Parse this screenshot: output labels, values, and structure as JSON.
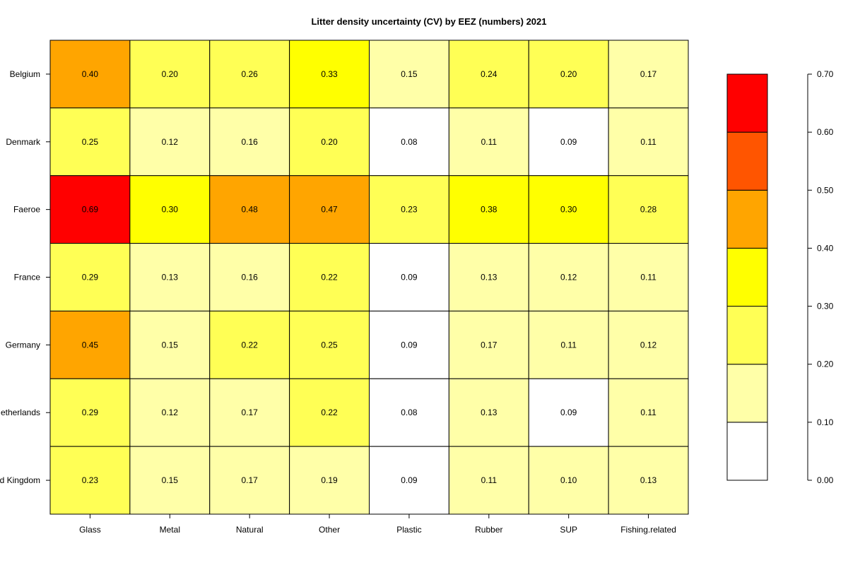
{
  "chart_data": {
    "type": "heatmap",
    "title": "Litter density uncertainty (CV) by EEZ (numbers) 2021",
    "xlabel": "",
    "ylabel": "",
    "columns": [
      "Glass",
      "Metal",
      "Natural",
      "Other",
      "Plastic",
      "Rubber",
      "SUP",
      "Fishing.related"
    ],
    "rows": [
      "Belgium",
      "Denmark",
      "Faeroe",
      "France",
      "Germany",
      "Netherlands",
      "United Kingdom"
    ],
    "row_labels_visible": [
      "Belgium",
      "Denmark",
      "Faeroe",
      "France",
      "Germany",
      "etherlands",
      "d Kingdom"
    ],
    "values": [
      [
        0.4,
        0.2,
        0.26,
        0.33,
        0.15,
        0.24,
        0.2,
        0.17
      ],
      [
        0.25,
        0.12,
        0.16,
        0.2,
        0.08,
        0.11,
        0.09,
        0.11
      ],
      [
        0.69,
        0.3,
        0.48,
        0.47,
        0.23,
        0.38,
        0.3,
        0.28
      ],
      [
        0.29,
        0.13,
        0.16,
        0.22,
        0.09,
        0.13,
        0.12,
        0.11
      ],
      [
        0.45,
        0.15,
        0.22,
        0.25,
        0.09,
        0.17,
        0.11,
        0.12
      ],
      [
        0.29,
        0.12,
        0.17,
        0.22,
        0.08,
        0.13,
        0.09,
        0.11
      ],
      [
        0.23,
        0.15,
        0.17,
        0.19,
        0.09,
        0.11,
        0.1,
        0.13
      ]
    ],
    "value_labels": [
      [
        "0.40",
        "0.20",
        "0.26",
        "0.33",
        "0.15",
        "0.24",
        "0.20",
        "0.17"
      ],
      [
        "0.25",
        "0.12",
        "0.16",
        "0.20",
        "0.08",
        "0.11",
        "0.09",
        "0.11"
      ],
      [
        "0.69",
        "0.30",
        "0.48",
        "0.47",
        "0.23",
        "0.38",
        "0.30",
        "0.28"
      ],
      [
        "0.29",
        "0.13",
        "0.16",
        "0.22",
        "0.09",
        "0.13",
        "0.12",
        "0.11"
      ],
      [
        "0.45",
        "0.15",
        "0.22",
        "0.25",
        "0.09",
        "0.17",
        "0.11",
        "0.12"
      ],
      [
        "0.29",
        "0.12",
        "0.17",
        "0.22",
        "0.08",
        "0.13",
        "0.09",
        "0.11"
      ],
      [
        "0.23",
        "0.15",
        "0.17",
        "0.19",
        "0.09",
        "0.11",
        "0.10",
        "0.13"
      ]
    ],
    "color_scale": {
      "breaks": [
        0.0,
        0.1,
        0.2,
        0.3,
        0.4,
        0.5,
        0.6,
        0.7
      ],
      "colors": [
        "#FFFFFF",
        "#FFFFA8",
        "#FFFF55",
        "#FFFF00",
        "#FFA500",
        "#FF5500",
        "#FF0000"
      ],
      "range": [
        0.0,
        0.7
      ],
      "tick_values": [
        0.0,
        0.1,
        0.2,
        0.3,
        0.4,
        0.5,
        0.6,
        0.7
      ],
      "tick_labels": [
        "0.00",
        "0.10",
        "0.20",
        "0.30",
        "0.40",
        "0.50",
        "0.60",
        "0.70"
      ]
    },
    "grid": true,
    "legend": "right"
  }
}
